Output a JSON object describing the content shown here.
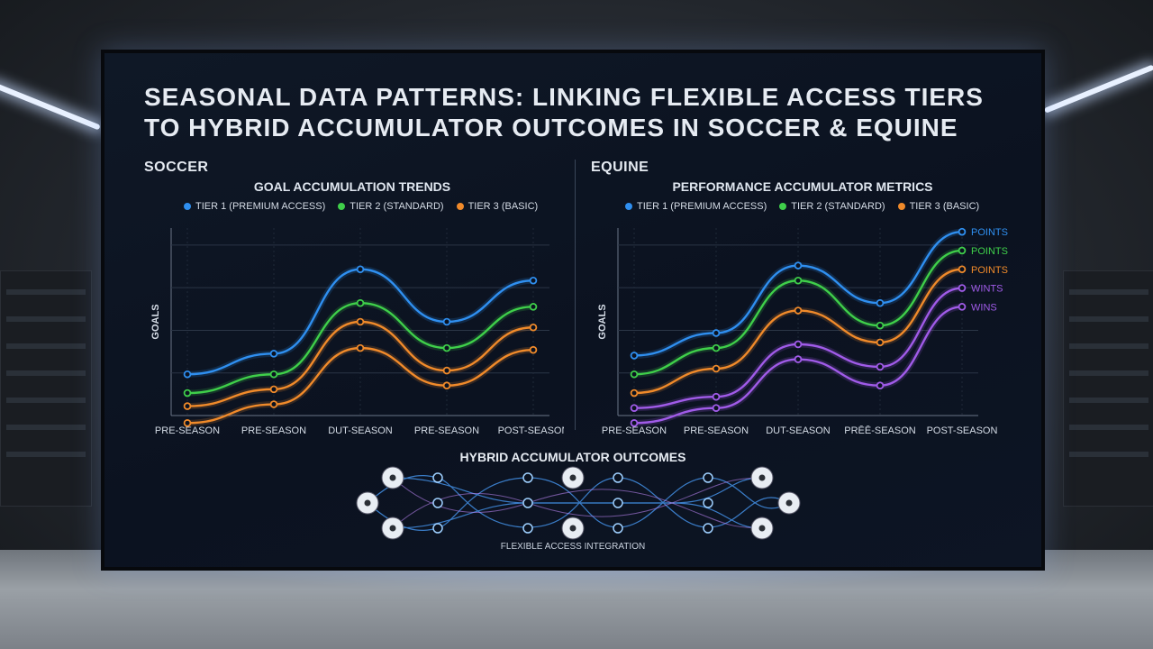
{
  "title": "SEASONAL DATA PATTERNS: LINKING FLEXIBLE ACCESS TIERS TO HYBRID ACCUMULATOR OUTCOMES IN SOCCER & EQUINE",
  "soccer": {
    "label": "SOCCER"
  },
  "equine": {
    "label": "EQUINE"
  },
  "hybrid": {
    "title": "HYBRID ACCUMULATOR OUTCOMES",
    "subtitle": "FLEXIBLE ACCESS INTEGRATION"
  },
  "colors": {
    "tier1": "#2f8ff0",
    "tier2": "#3fcf4a",
    "tier3": "#f08a2a",
    "wins": "#a05be8",
    "accent_bg": "#0b1220"
  },
  "chart_data": [
    {
      "type": "line",
      "title": "GOAL ACCUMULATION TRENDS",
      "ylabel": "GOALS",
      "xlabel": "",
      "categories": [
        "PRE-SEASON",
        "PRE-SEASON",
        "DUT-SEASON",
        "PRE-SEASON",
        "POST-SEASON"
      ],
      "ylim": [
        0,
        100
      ],
      "grid": true,
      "legend": "top",
      "series": [
        {
          "name": "TIER 1 (PREMIUM ACCESS)",
          "color": "#2f8ff0",
          "values": [
            22,
            33,
            78,
            50,
            72
          ]
        },
        {
          "name": "TIER 2 (STANDARD)",
          "color": "#3fcf4a",
          "values": [
            12,
            22,
            60,
            36,
            58
          ]
        },
        {
          "name": "TIER 3 (BASIC)",
          "color": "#f08a2a",
          "values": [
            5,
            14,
            50,
            24,
            47
          ]
        },
        {
          "name": "",
          "color": "#f08a2a",
          "values": [
            -4,
            6,
            36,
            16,
            35
          ]
        }
      ]
    },
    {
      "type": "line",
      "title": "PERFORMANCE ACCUMULATOR METRICS",
      "ylabel": "GOALS",
      "xlabel": "",
      "categories": [
        "PRE-SEASON",
        "PRE-SEASON",
        "DUT-SEASON",
        "PRĒĒ-SEASON",
        "POST-SEASON"
      ],
      "ylim": [
        0,
        100
      ],
      "grid": true,
      "legend": "top",
      "series": [
        {
          "name": "TIER 1 (PREMIUM ACCESS)",
          "color": "#2f8ff0",
          "values": [
            32,
            44,
            80,
            60,
            98
          ],
          "end_label": "POINTS"
        },
        {
          "name": "TIER 2 (STANDARD)",
          "color": "#3fcf4a",
          "values": [
            22,
            36,
            72,
            48,
            88
          ],
          "end_label": "POINTS"
        },
        {
          "name": "TIER 3 (BASIC)",
          "color": "#f08a2a",
          "values": [
            12,
            25,
            56,
            39,
            78
          ],
          "end_label": "POINTS"
        },
        {
          "name": "",
          "color": "#a05be8",
          "values": [
            4,
            10,
            38,
            26,
            68
          ],
          "end_label": "WINTS"
        },
        {
          "name": "",
          "color": "#a05be8",
          "values": [
            -4,
            4,
            30,
            16,
            58
          ],
          "end_label": "WINS"
        }
      ]
    }
  ]
}
